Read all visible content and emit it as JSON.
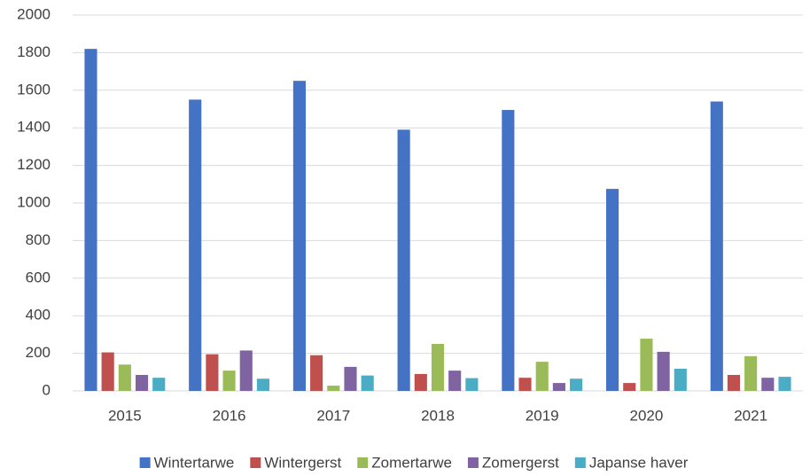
{
  "chart_data": {
    "type": "bar",
    "categories": [
      "2015",
      "2016",
      "2017",
      "2018",
      "2019",
      "2020",
      "2021"
    ],
    "series": [
      {
        "name": "Wintertarwe",
        "color": "#4472c4",
        "values": [
          1820,
          1550,
          1650,
          1390,
          1495,
          1075,
          1540
        ]
      },
      {
        "name": "Wintergerst",
        "color": "#c0504d",
        "values": [
          205,
          195,
          190,
          90,
          70,
          42,
          85
        ]
      },
      {
        "name": "Zomertarwe",
        "color": "#9bbb59",
        "values": [
          140,
          108,
          28,
          250,
          155,
          278,
          185
        ]
      },
      {
        "name": "Zomergerst",
        "color": "#8064a2",
        "values": [
          85,
          215,
          128,
          108,
          42,
          208,
          70
        ]
      },
      {
        "name": "Japanse haver",
        "color": "#4bacc6",
        "values": [
          70,
          65,
          82,
          68,
          65,
          118,
          75
        ]
      }
    ],
    "ylim": [
      0,
      2000
    ],
    "yticks": [
      0,
      200,
      400,
      600,
      800,
      1000,
      1200,
      1400,
      1600,
      1800,
      2000
    ],
    "grid": true,
    "legend": "bottom"
  }
}
